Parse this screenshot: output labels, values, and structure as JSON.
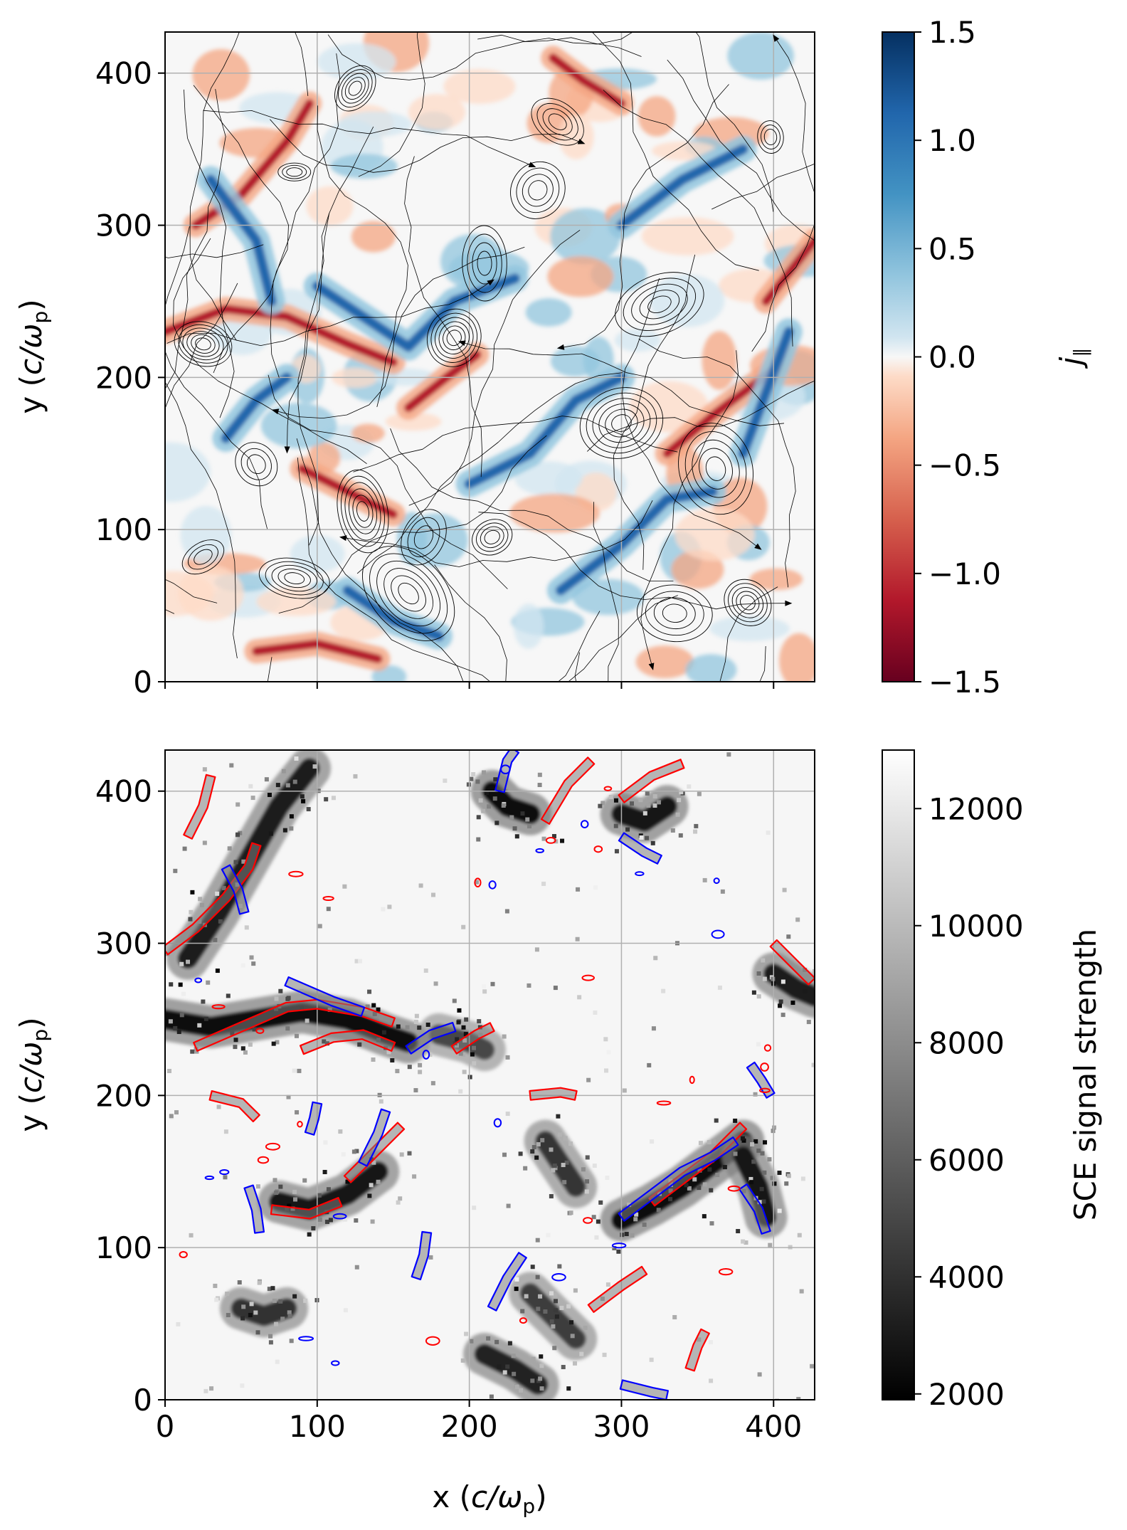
{
  "chart_data": [
    {
      "type": "heatmap",
      "panel": "top",
      "title": "",
      "xlabel": "",
      "ylabel": "y (c/ωp)",
      "ylabel_parts": {
        "main": "y (",
        "italic": "c/ω",
        "sub": "p",
        "close": ")"
      },
      "xlim": [
        0,
        427
      ],
      "ylim": [
        0,
        427
      ],
      "xticks": [
        0,
        100,
        200,
        300,
        400
      ],
      "yticks": [
        0,
        100,
        200,
        300,
        400
      ],
      "ytick_labels": [
        "0",
        "100",
        "200",
        "300",
        "400"
      ],
      "grid": true,
      "colormap": "RdBu",
      "colorbar": {
        "label": "j∥",
        "label_main": "j",
        "label_sub": "∥",
        "range": [
          -1.5,
          1.5
        ],
        "ticks": [
          -1.5,
          -1.0,
          -0.5,
          0.0,
          0.5,
          1.0,
          1.5
        ],
        "tick_labels": [
          "−1.5",
          "−1.0",
          "−0.5",
          "0.0",
          "0.5",
          "1.0",
          "1.5"
        ]
      },
      "overlay": "magnetic field streamlines (black)",
      "features": {
        "o_points": [
          [
            85,
            335
          ],
          [
            258,
            368
          ],
          [
            362,
            140
          ],
          [
            190,
            226
          ],
          [
            25,
            82
          ],
          [
            335,
            45
          ],
          [
            383,
            52
          ],
          [
            130,
            112
          ],
          [
            170,
            95
          ],
          [
            215,
            95
          ],
          [
            85,
            68
          ],
          [
            160,
            58
          ],
          [
            398,
            358
          ],
          [
            245,
            323
          ],
          [
            325,
            248
          ],
          [
            25,
            222
          ],
          [
            60,
            143
          ],
          [
            210,
            275
          ],
          [
            125,
            390
          ],
          [
            300,
            170
          ]
        ],
        "current_sheets_negative": [
          [
            [
              20,
              300
            ],
            [
              50,
              320
            ],
            [
              80,
              355
            ],
            [
              95,
              380
            ]
          ],
          [
            [
              0,
              230
            ],
            [
              40,
              245
            ],
            [
              80,
              240
            ],
            [
              120,
              222
            ],
            [
              150,
              210
            ]
          ],
          [
            [
              255,
              410
            ],
            [
              275,
              395
            ],
            [
              300,
              380
            ]
          ],
          [
            [
              90,
              140
            ],
            [
              120,
              125
            ],
            [
              150,
              110
            ]
          ],
          [
            [
              330,
              150
            ],
            [
              360,
              175
            ],
            [
              400,
              205
            ]
          ],
          [
            [
              395,
              250
            ],
            [
              415,
              275
            ],
            [
              427,
              290
            ]
          ],
          [
            [
              160,
              180
            ],
            [
              185,
              200
            ],
            [
              205,
              215
            ]
          ],
          [
            [
              60,
              20
            ],
            [
              100,
              25
            ],
            [
              140,
              15
            ]
          ]
        ],
        "current_sheets_positive": [
          [
            [
              100,
              260
            ],
            [
              130,
              240
            ],
            [
              160,
              220
            ],
            [
              190,
              250
            ],
            [
              230,
              265
            ]
          ],
          [
            [
              30,
              330
            ],
            [
              60,
              290
            ],
            [
              70,
              250
            ]
          ],
          [
            [
              200,
              130
            ],
            [
              240,
              150
            ],
            [
              270,
              185
            ],
            [
              300,
              200
            ]
          ],
          [
            [
              260,
              60
            ],
            [
              300,
              90
            ],
            [
              330,
              120
            ],
            [
              360,
              125
            ]
          ],
          [
            [
              380,
              150
            ],
            [
              395,
              190
            ],
            [
              410,
              230
            ]
          ],
          [
            [
              300,
              300
            ],
            [
              340,
              330
            ],
            [
              380,
              350
            ]
          ],
          [
            [
              40,
              160
            ],
            [
              60,
              185
            ],
            [
              80,
              200
            ]
          ],
          [
            [
              120,
              60
            ],
            [
              150,
              40
            ],
            [
              180,
              30
            ]
          ]
        ]
      }
    },
    {
      "type": "heatmap",
      "panel": "bottom",
      "title": "",
      "xlabel": "x (c/ωp)",
      "xlabel_parts": {
        "main": "x (",
        "italic": "c/ω",
        "sub": "p",
        "close": ")"
      },
      "ylabel": "y (c/ωp)",
      "ylabel_parts": {
        "main": "y (",
        "italic": "c/ω",
        "sub": "p",
        "close": ")"
      },
      "xlim": [
        0,
        427
      ],
      "ylim": [
        0,
        427
      ],
      "xticks": [
        0,
        100,
        200,
        300,
        400
      ],
      "xtick_labels": [
        "0",
        "100",
        "200",
        "300",
        "400"
      ],
      "yticks": [
        0,
        100,
        200,
        300,
        400
      ],
      "ytick_labels": [
        "0",
        "100",
        "200",
        "300",
        "400"
      ],
      "grid": true,
      "colormap": "gray",
      "colorbar": {
        "label": "SCE signal strength",
        "range": [
          1900,
          13000
        ],
        "ticks": [
          2000,
          4000,
          6000,
          8000,
          10000,
          12000
        ],
        "tick_labels": [
          "2000",
          "4000",
          "6000",
          "8000",
          "10000",
          "12000"
        ]
      },
      "contour_colors": {
        "positive": "#ff0000",
        "negative": "#0000ff"
      },
      "features": {
        "dark_regions": [
          {
            "path": [
              [
                0,
                250
              ],
              [
                30,
                245
              ],
              [
                60,
                250
              ],
              [
                90,
                255
              ],
              [
                120,
                250
              ],
              [
                145,
                240
              ],
              [
                160,
                235
              ]
            ],
            "strength": 2600
          },
          {
            "path": [
              [
                15,
                290
              ],
              [
                35,
                320
              ],
              [
                55,
                355
              ],
              [
                75,
                390
              ],
              [
                95,
                415
              ]
            ],
            "strength": 3200
          },
          {
            "path": [
              [
                300,
                118
              ],
              [
                320,
                128
              ],
              [
                340,
                140
              ],
              [
                360,
                155
              ],
              [
                380,
                170
              ]
            ],
            "strength": 2400
          },
          {
            "path": [
              [
                215,
                400
              ],
              [
                225,
                390
              ],
              [
                240,
                385
              ]
            ],
            "strength": 2300
          },
          {
            "path": [
              [
                75,
                130
              ],
              [
                95,
                125
              ],
              [
                120,
                135
              ],
              [
                140,
                150
              ]
            ],
            "strength": 3000
          },
          {
            "path": [
              [
                300,
                385
              ],
              [
                315,
                380
              ],
              [
                330,
                390
              ]
            ],
            "strength": 2800
          },
          {
            "path": [
              [
                400,
                280
              ],
              [
                415,
                270
              ],
              [
                427,
                265
              ]
            ],
            "strength": 3200
          },
          {
            "path": [
              [
                180,
                240
              ],
              [
                200,
                235
              ],
              [
                210,
                230
              ]
            ],
            "strength": 5000
          },
          {
            "path": [
              [
                380,
                160
              ],
              [
                390,
                140
              ],
              [
                395,
                120
              ]
            ],
            "strength": 3000
          },
          {
            "path": [
              [
                210,
                30
              ],
              [
                230,
                20
              ],
              [
                245,
                10
              ]
            ],
            "strength": 3400
          },
          {
            "path": [
              [
                240,
                70
              ],
              [
                255,
                55
              ],
              [
                270,
                40
              ]
            ],
            "strength": 4500
          },
          {
            "path": [
              [
                250,
                170
              ],
              [
                260,
                155
              ],
              [
                270,
                140
              ]
            ],
            "strength": 4200
          },
          {
            "path": [
              [
                50,
                60
              ],
              [
                65,
                55
              ],
              [
                80,
                60
              ]
            ],
            "strength": 4000
          }
        ],
        "red_contours": [
          [
            [
              0,
              295
            ],
            [
              20,
              310
            ],
            [
              40,
              330
            ],
            [
              55,
              350
            ],
            [
              60,
              365
            ]
          ],
          [
            [
              20,
              232
            ],
            [
              50,
              245
            ],
            [
              80,
              258
            ],
            [
              100,
              260
            ],
            [
              130,
              255
            ],
            [
              150,
              248
            ]
          ],
          [
            [
              90,
              230
            ],
            [
              110,
              238
            ],
            [
              130,
              240
            ],
            [
              150,
              232
            ]
          ],
          [
            [
              120,
              145
            ],
            [
              140,
              165
            ],
            [
              150,
              175
            ],
            [
              155,
              180
            ]
          ],
          [
            [
              70,
              125
            ],
            [
              95,
              122
            ],
            [
              115,
              130
            ]
          ],
          [
            [
              320,
              130
            ],
            [
              340,
              145
            ],
            [
              360,
              160
            ],
            [
              380,
              180
            ]
          ],
          [
            [
              250,
              380
            ],
            [
              265,
              405
            ],
            [
              280,
              420
            ]
          ],
          [
            [
              300,
              395
            ],
            [
              320,
              410
            ],
            [
              340,
              418
            ]
          ],
          [
            [
              400,
              300
            ],
            [
              415,
              285
            ],
            [
              425,
              275
            ]
          ],
          [
            [
              240,
              200
            ],
            [
              260,
              202
            ],
            [
              270,
              200
            ]
          ],
          [
            [
              190,
              230
            ],
            [
              205,
              240
            ],
            [
              215,
              245
            ]
          ],
          [
            [
              30,
              200
            ],
            [
              50,
              195
            ],
            [
              60,
              185
            ]
          ],
          [
            [
              15,
              370
            ],
            [
              25,
              390
            ],
            [
              30,
              410
            ]
          ],
          [
            [
              345,
              20
            ],
            [
              350,
              35
            ],
            [
              355,
              45
            ]
          ],
          [
            [
              280,
              60
            ],
            [
              300,
              75
            ],
            [
              315,
              85
            ]
          ]
        ],
        "blue_contours": [
          [
            [
              300,
              120
            ],
            [
              320,
              135
            ],
            [
              340,
              150
            ],
            [
              360,
              160
            ],
            [
              375,
              170
            ]
          ],
          [
            [
              130,
              155
            ],
            [
              140,
              175
            ],
            [
              145,
              190
            ]
          ],
          [
            [
              55,
              140
            ],
            [
              60,
              125
            ],
            [
              62,
              110
            ]
          ],
          [
            [
              220,
              400
            ],
            [
              225,
              420
            ],
            [
              230,
              427
            ]
          ],
          [
            [
              300,
              370
            ],
            [
              315,
              360
            ],
            [
              325,
              355
            ]
          ],
          [
            [
              80,
              275
            ],
            [
              110,
              262
            ],
            [
              130,
              255
            ]
          ],
          [
            [
              380,
              140
            ],
            [
              390,
              125
            ],
            [
              395,
              110
            ]
          ],
          [
            [
              215,
              60
            ],
            [
              225,
              80
            ],
            [
              235,
              95
            ]
          ],
          [
            [
              160,
              230
            ],
            [
              175,
              240
            ],
            [
              190,
              245
            ]
          ],
          [
            [
              165,
              80
            ],
            [
              170,
              95
            ],
            [
              172,
              110
            ]
          ],
          [
            [
              40,
              350
            ],
            [
              48,
              335
            ],
            [
              52,
              320
            ]
          ],
          [
            [
              100,
              195
            ],
            [
              98,
              185
            ],
            [
              95,
              175
            ]
          ],
          [
            [
              385,
              220
            ],
            [
              392,
              210
            ],
            [
              398,
              200
            ]
          ],
          [
            [
              300,
              10
            ],
            [
              320,
              5
            ],
            [
              330,
              3
            ]
          ]
        ]
      }
    }
  ]
}
